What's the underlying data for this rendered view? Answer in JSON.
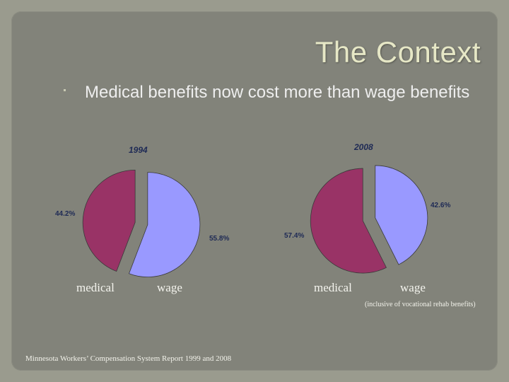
{
  "slide": {
    "title": "The Context",
    "bullet": "Medical benefits now cost more than wage benefits",
    "note": "(inclusive of vocational rehab benefits)",
    "source": "Minnesota Workers’ Compensation System Report 1999 and 2008"
  },
  "colors": {
    "medical": "#993366",
    "wage": "#9999ff",
    "edge": "#3a3a3a"
  },
  "chart_data": [
    {
      "type": "pie",
      "title": "1994",
      "categories": [
        "medical",
        "wage"
      ],
      "values": [
        44.2,
        55.8
      ],
      "value_labels": [
        "44.2%",
        "55.8%"
      ],
      "category_labels": [
        "medical",
        "wage"
      ]
    },
    {
      "type": "pie",
      "title": "2008",
      "categories": [
        "medical",
        "wage"
      ],
      "values": [
        57.4,
        42.6
      ],
      "value_labels": [
        "57.4%",
        "42.6%"
      ],
      "category_labels": [
        "medical",
        "wage"
      ]
    }
  ]
}
